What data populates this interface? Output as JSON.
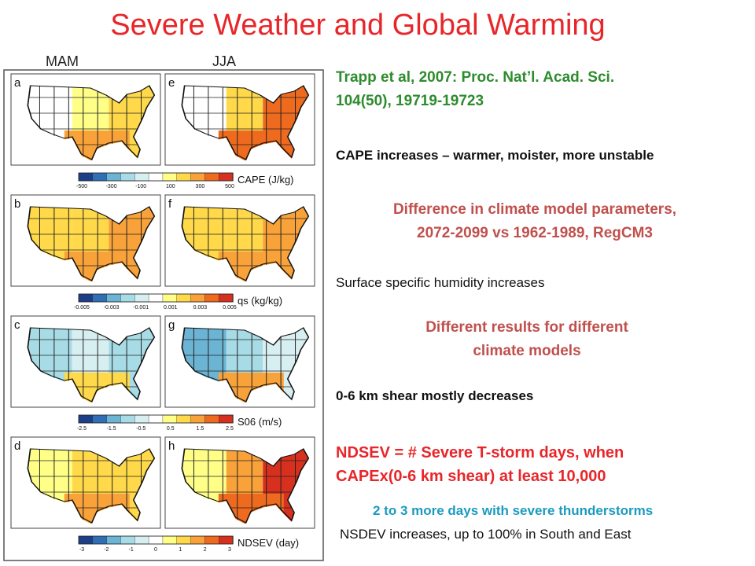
{
  "title": "Severe Weather and Global Warming",
  "season_labels": [
    "MAM",
    "JJA"
  ],
  "reference": [
    "Trapp et al, 2007:  Proc. Nat’l. Acad. Sci.",
    "104(50), 19719-19723"
  ],
  "notes": {
    "cape": "CAPE increases – warmer, moister, more unstable",
    "diff": [
      "Difference in climate model parameters,",
      "2072-2099 vs 1962-1989, RegCM3"
    ],
    "humidity": "Surface specific humidity increases",
    "models": [
      "Different results for different",
      "climate models"
    ],
    "shear": "0-6 km shear mostly decreases",
    "ndsev": [
      "NDSEV = # Severe T-storm days, when",
      "CAPEx(0-6 km shear) at least 10,000"
    ],
    "days": "2 to 3 more days with severe thunderstorms",
    "nsdev": "NSDEV increases, up to 100% in South and East"
  },
  "panels": [
    {
      "letter": "a",
      "palette": "cape_mam"
    },
    {
      "letter": "e",
      "palette": "cape_jja"
    },
    {
      "letter": "b",
      "palette": "qs"
    },
    {
      "letter": "f",
      "palette": "qs"
    },
    {
      "letter": "c",
      "palette": "s06_mam"
    },
    {
      "letter": "g",
      "palette": "s06_jja"
    },
    {
      "letter": "d",
      "palette": "ndsev_mam"
    },
    {
      "letter": "h",
      "palette": "ndsev_jja"
    }
  ],
  "colorbars": [
    {
      "label": "CAPE (J/kg)",
      "ticks": [
        "-500",
        "-300",
        "-100",
        "100",
        "300",
        "500"
      ]
    },
    {
      "label": "qs (kg/kg)",
      "ticks": [
        "-0.005",
        "-0.003",
        "-0.001",
        "0.001",
        "0.003",
        "0.005"
      ]
    },
    {
      "label": "S06 (m/s)",
      "ticks": [
        "-2.5",
        "-1.5",
        "-0.5",
        "0.5",
        "1.5",
        "2.5"
      ]
    },
    {
      "label": "NDSEV (day)",
      "ticks": [
        "-3",
        "-2",
        "-1",
        "0",
        "1",
        "2",
        "3"
      ]
    }
  ],
  "colors": {
    "title": "#e8262a",
    "reference": "#2e8b2e",
    "highlight": "#c0504d",
    "teal": "#1b9abf",
    "scale": [
      "#1d3f8a",
      "#2f6fb5",
      "#6cb4d4",
      "#a7dbe6",
      "#d8eff2",
      "#ffffff",
      "#ffff88",
      "#ffd94a",
      "#f9a23a",
      "#ee6a1e",
      "#d7301f"
    ]
  }
}
